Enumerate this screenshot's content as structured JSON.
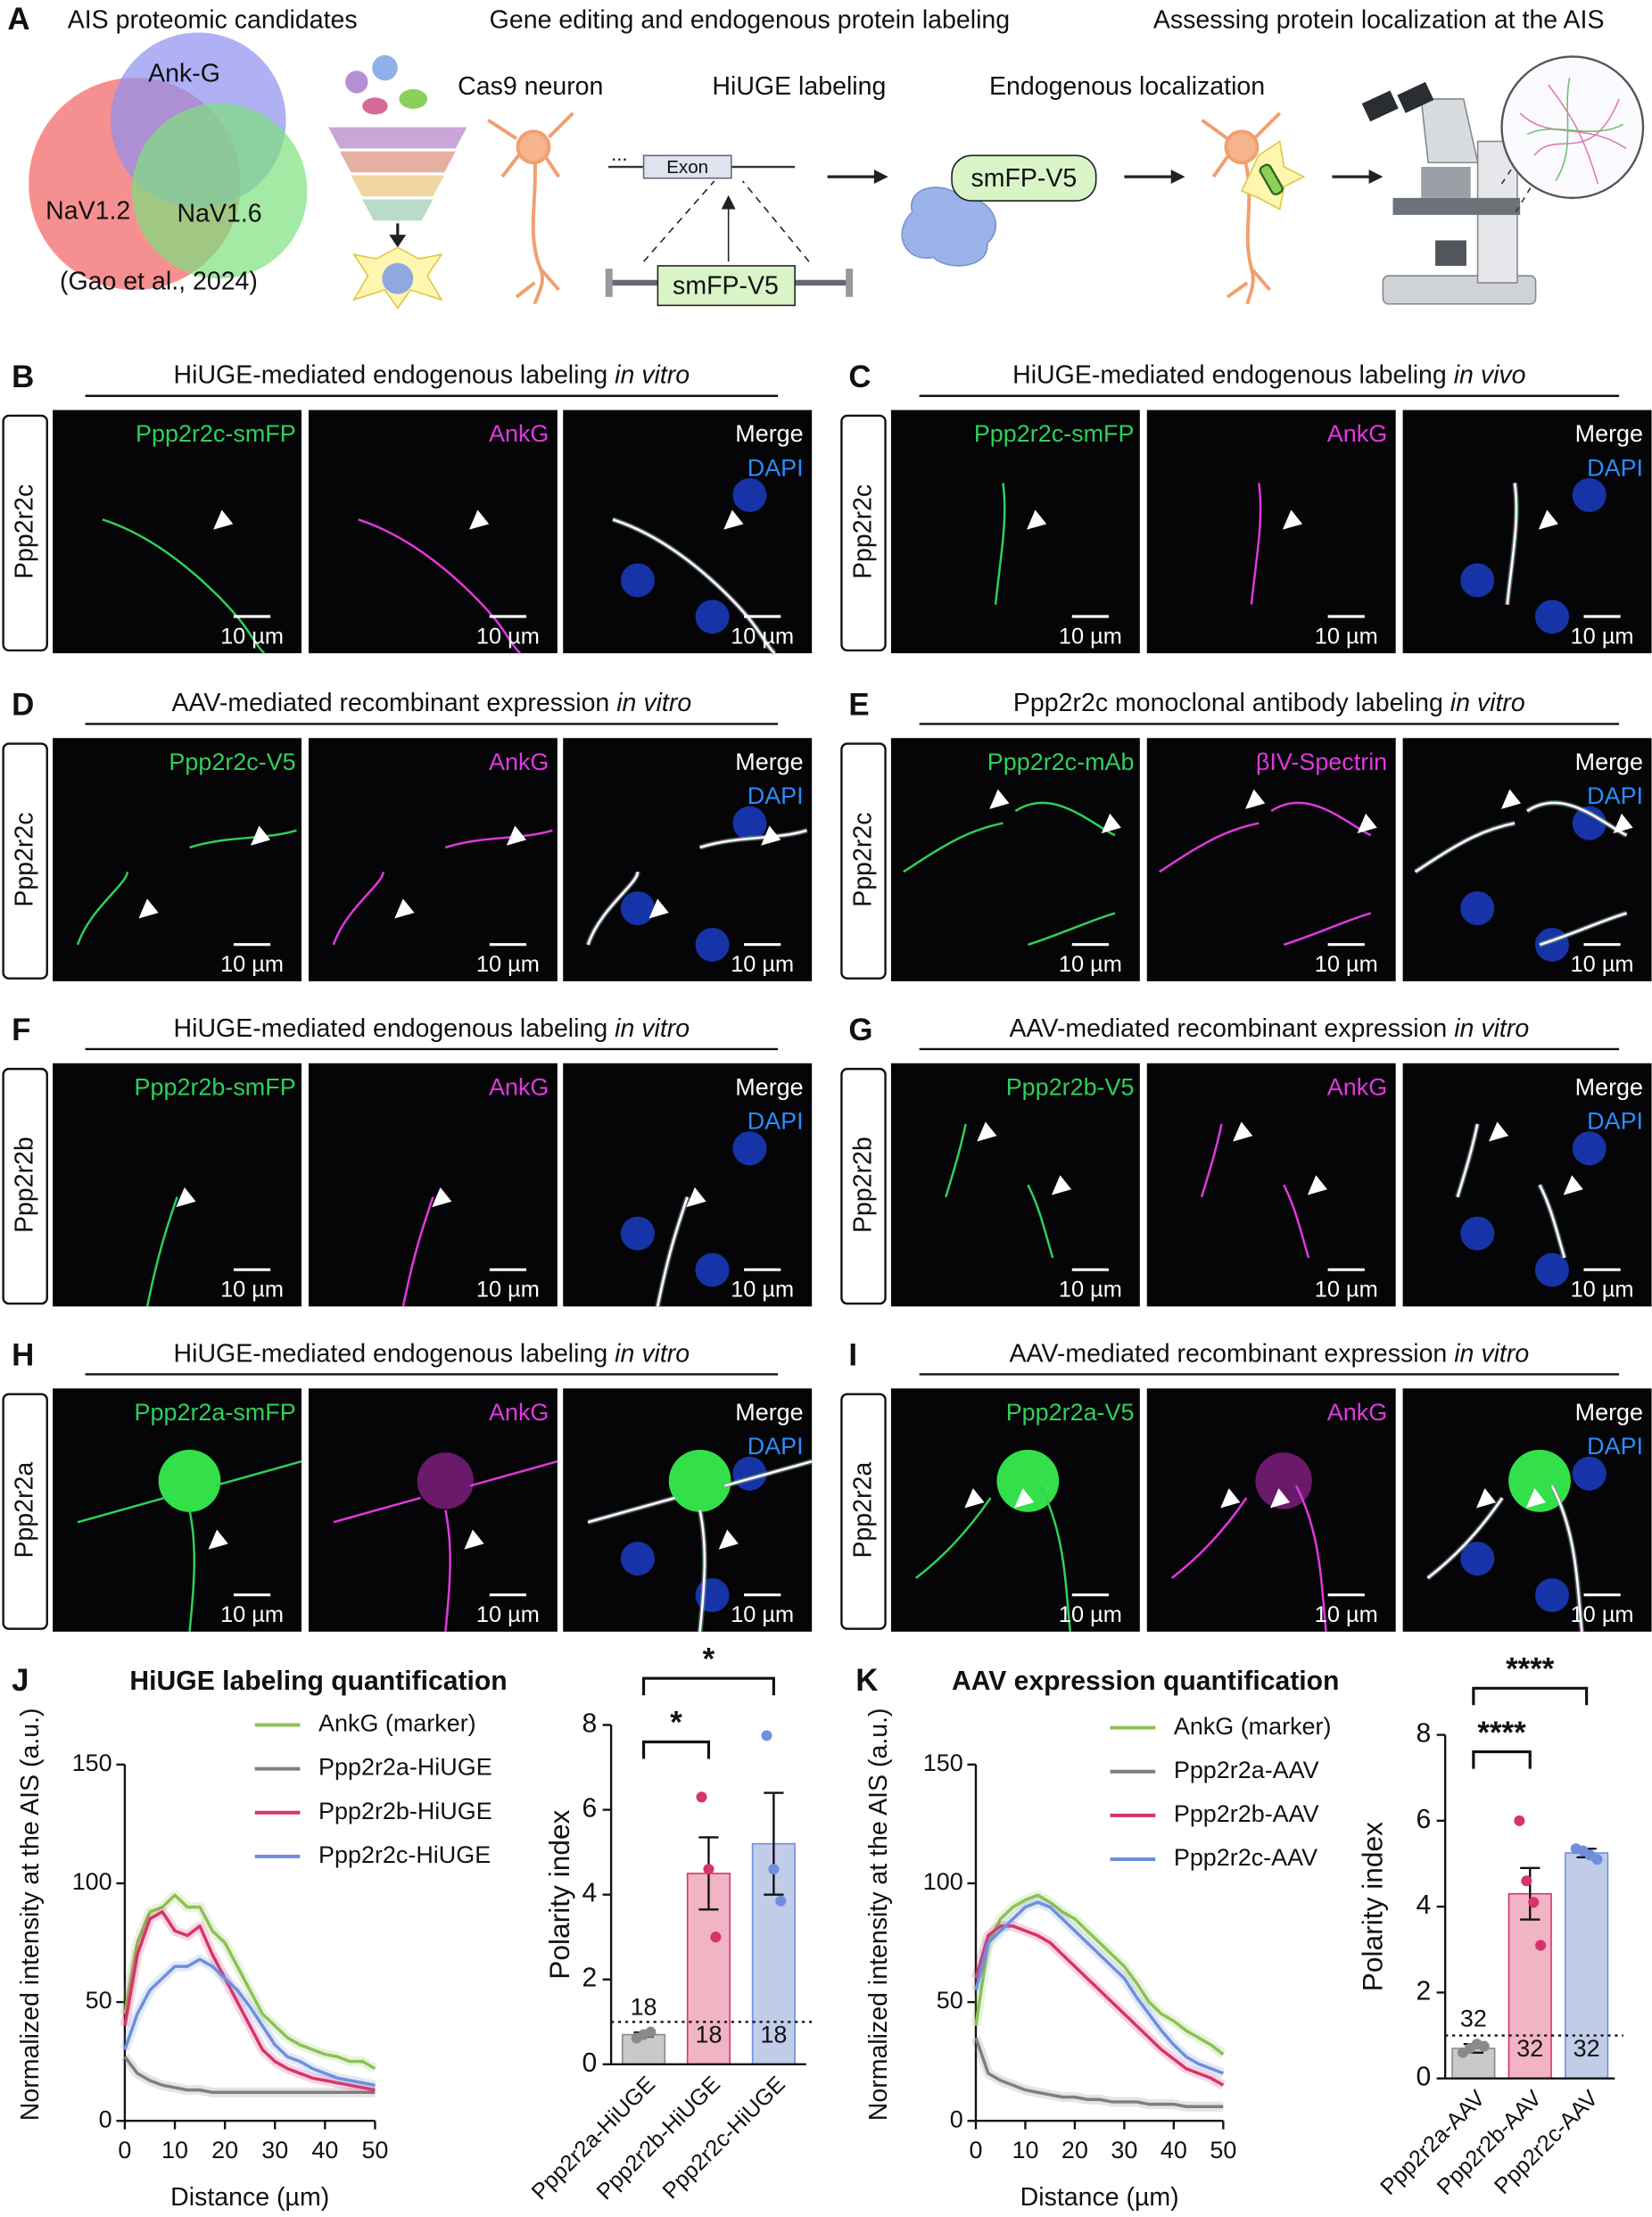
{
  "panel_A": {
    "letter": "A",
    "headings": [
      "AIS proteomic candidates",
      "Gene editing and endogenous protein labeling",
      "Assessing protein localization at the AIS"
    ],
    "venn": {
      "labels": [
        "Ank-G",
        "NaV1.2",
        "NaV1.6"
      ],
      "citation": "(Gao et al., 2024)"
    },
    "steps": [
      "Cas9 neuron",
      "HiUGE labeling",
      "Endogenous localization"
    ],
    "construct": {
      "ellipsis": "...",
      "exon": "Exon",
      "tag": "smFP-V5"
    },
    "protein_tag": "smFP-V5"
  },
  "image_panels": [
    {
      "letter": "B",
      "title": "HiUGE-mediated endogenous labeling",
      "title_italic": "in vitro",
      "row_label": "Ppp2r2c",
      "channels": [
        "Ppp2r2c-smFP",
        "AnkG",
        "Merge",
        "DAPI"
      ],
      "scale_bar": "10 µm"
    },
    {
      "letter": "C",
      "title": "HiUGE-mediated endogenous labeling",
      "title_italic": "in vivo",
      "row_label": "Ppp2r2c",
      "channels": [
        "Ppp2r2c-smFP",
        "AnkG",
        "Merge",
        "DAPI"
      ],
      "scale_bar": "10 µm"
    },
    {
      "letter": "D",
      "title": "AAV-mediated recombinant expression",
      "title_italic": "in vitro",
      "row_label": "Ppp2r2c",
      "channels": [
        "Ppp2r2c-V5",
        "AnkG",
        "Merge",
        "DAPI"
      ],
      "scale_bar": "10 µm"
    },
    {
      "letter": "E",
      "title": "Ppp2r2c monoclonal antibody labeling",
      "title_italic": "in vitro",
      "row_label": "Ppp2r2c",
      "channels": [
        "Ppp2r2c-mAb",
        "βIV-Spectrin",
        "Merge",
        "DAPI"
      ],
      "scale_bar": "10 µm"
    },
    {
      "letter": "F",
      "title": "HiUGE-mediated endogenous labeling",
      "title_italic": "in vitro",
      "row_label": "Ppp2r2b",
      "channels": [
        "Ppp2r2b-smFP",
        "AnkG",
        "Merge",
        "DAPI"
      ],
      "scale_bar": "10 µm"
    },
    {
      "letter": "G",
      "title": "AAV-mediated recombinant expression",
      "title_italic": "in vitro",
      "row_label": "Ppp2r2b",
      "channels": [
        "Ppp2r2b-V5",
        "AnkG",
        "Merge",
        "DAPI"
      ],
      "scale_bar": "10 µm"
    },
    {
      "letter": "H",
      "title": "HiUGE-mediated endogenous labeling",
      "title_italic": "in vitro",
      "row_label": "Ppp2r2a",
      "channels": [
        "Ppp2r2a-smFP",
        "AnkG",
        "Merge",
        "DAPI"
      ],
      "scale_bar": "10 µm"
    },
    {
      "letter": "I",
      "title": "AAV-mediated recombinant expression",
      "title_italic": "in vitro",
      "row_label": "Ppp2r2a",
      "channels": [
        "Ppp2r2a-V5",
        "AnkG",
        "Merge",
        "DAPI"
      ],
      "scale_bar": "10 µm"
    }
  ],
  "chart_data": [
    {
      "type": "line",
      "letter": "J",
      "title": "HiUGE labeling quantification",
      "x_label": "Distance (µm)",
      "y_label": "Normalized intensity at the AIS (a.u.)",
      "x": [
        0,
        2.5,
        5,
        7.5,
        10,
        12.5,
        15,
        17.5,
        20,
        22.5,
        25,
        27.5,
        30,
        32.5,
        35,
        37.5,
        40,
        42.5,
        45,
        47.5,
        50
      ],
      "series": [
        {
          "name": "AnkG (marker)",
          "color": "#8dc153",
          "values": [
            45,
            75,
            88,
            90,
            95,
            90,
            90,
            80,
            75,
            65,
            55,
            45,
            40,
            35,
            32,
            30,
            28,
            27,
            25,
            25,
            22
          ]
        },
        {
          "name": "Ppp2r2a-HiUGE",
          "color": "#7f7f7f",
          "values": [
            27,
            20,
            17,
            15,
            14,
            13,
            13,
            12,
            12,
            12,
            12,
            12,
            12,
            12,
            12,
            12,
            12,
            12,
            12,
            12,
            12
          ]
        },
        {
          "name": "Ppp2r2b-HiUGE",
          "color": "#d6336c",
          "values": [
            40,
            70,
            85,
            88,
            80,
            78,
            82,
            70,
            60,
            50,
            40,
            30,
            25,
            22,
            20,
            18,
            17,
            16,
            15,
            14,
            13
          ]
        },
        {
          "name": "Ppp2r2c-HiUGE",
          "color": "#6f8fdc",
          "values": [
            30,
            45,
            55,
            60,
            65,
            65,
            68,
            65,
            60,
            55,
            48,
            40,
            32,
            27,
            25,
            22,
            20,
            18,
            17,
            16,
            15
          ]
        }
      ],
      "xlim": [
        0,
        50
      ],
      "xticks": [
        0,
        10,
        20,
        30,
        40,
        50
      ],
      "ylim": [
        0,
        150
      ],
      "yticks": [
        0,
        50,
        100,
        150
      ]
    },
    {
      "type": "bar",
      "y_label": "Polarity index",
      "categories": [
        "Ppp2r2a-HiUGE",
        "Ppp2r2b-HiUGE",
        "Ppp2r2c-HiUGE"
      ],
      "values": [
        0.7,
        4.5,
        5.2
      ],
      "errors": [
        0.05,
        0.85,
        1.2
      ],
      "colors": [
        "#c9c9c9",
        "#f0b4c4",
        "#c1cde8"
      ],
      "point_colors": [
        "#8a8a8a",
        "#d6336c",
        "#6f8fdc"
      ],
      "points": [
        [
          0.62,
          0.7,
          0.76
        ],
        [
          6.3,
          4.6,
          3.0
        ],
        [
          7.75,
          4.6,
          3.85
        ]
      ],
      "n_labels": [
        "18",
        "18",
        "18"
      ],
      "reference_line": 1,
      "significance": [
        {
          "from": 0,
          "to": 1,
          "label": "*"
        },
        {
          "from": 0,
          "to": 2,
          "label": "*"
        }
      ],
      "ylim": [
        0,
        8
      ],
      "yticks": [
        0,
        2,
        4,
        6,
        8
      ]
    },
    {
      "type": "line",
      "letter": "K",
      "title": "AAV expression quantification",
      "x_label": "Distance (µm)",
      "y_label": "Normalized intensity at the AIS (a.u.)",
      "x": [
        0,
        2.5,
        5,
        7.5,
        10,
        12.5,
        15,
        17.5,
        20,
        22.5,
        25,
        27.5,
        30,
        32.5,
        35,
        37.5,
        40,
        42.5,
        45,
        47.5,
        50
      ],
      "series": [
        {
          "name": "AnkG (marker)",
          "color": "#8dc153",
          "values": [
            40,
            75,
            85,
            90,
            93,
            95,
            92,
            88,
            85,
            80,
            75,
            70,
            65,
            58,
            50,
            45,
            42,
            38,
            35,
            32,
            28
          ]
        },
        {
          "name": "Ppp2r2a-AAV",
          "color": "#7f7f7f",
          "values": [
            35,
            20,
            17,
            15,
            13,
            12,
            11,
            10,
            10,
            9,
            9,
            8,
            8,
            8,
            7,
            7,
            7,
            6,
            6,
            6,
            6
          ]
        },
        {
          "name": "Ppp2r2b-AAV",
          "color": "#d6336c",
          "values": [
            60,
            78,
            82,
            82,
            80,
            78,
            75,
            70,
            65,
            60,
            55,
            50,
            45,
            40,
            35,
            30,
            26,
            22,
            20,
            18,
            15
          ]
        },
        {
          "name": "Ppp2r2c-AAV",
          "color": "#6f8fdc",
          "values": [
            55,
            75,
            80,
            85,
            90,
            92,
            90,
            85,
            80,
            75,
            70,
            65,
            60,
            52,
            45,
            38,
            32,
            27,
            24,
            22,
            20
          ]
        }
      ],
      "xlim": [
        0,
        50
      ],
      "xticks": [
        0,
        10,
        20,
        30,
        40,
        50
      ],
      "ylim": [
        0,
        150
      ],
      "yticks": [
        0,
        50,
        100,
        150
      ]
    },
    {
      "type": "bar",
      "y_label": "Polarity index",
      "categories": [
        "Ppp2r2a-AAV",
        "Ppp2r2b-AAV",
        "Ppp2r2c-AAV"
      ],
      "values": [
        0.7,
        4.3,
        5.25
      ],
      "errors": [
        0.1,
        0.6,
        0.1
      ],
      "colors": [
        "#c9c9c9",
        "#f0b4c4",
        "#c1cde8"
      ],
      "point_colors": [
        "#8a8a8a",
        "#d6336c",
        "#6f8fdc"
      ],
      "points": [
        [
          0.6,
          0.7,
          0.8,
          0.75
        ],
        [
          6.0,
          4.6,
          4.1,
          3.1
        ],
        [
          5.35,
          5.3,
          5.2,
          5.1
        ]
      ],
      "n_labels": [
        "32",
        "32",
        "32"
      ],
      "reference_line": 1,
      "significance": [
        {
          "from": 0,
          "to": 1,
          "label": "****"
        },
        {
          "from": 0,
          "to": 2,
          "label": "****"
        }
      ],
      "ylim": [
        0,
        8
      ],
      "yticks": [
        0,
        2,
        4,
        6,
        8
      ]
    }
  ]
}
